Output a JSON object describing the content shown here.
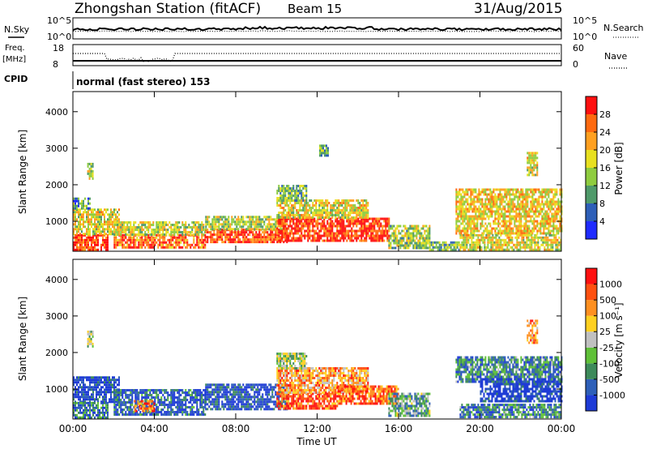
{
  "header": {
    "station": "Zhongshan Station (fitACF)",
    "beam": "Beam 15",
    "date": "31/Aug/2015"
  },
  "top_panels": {
    "nsky_label": "N.Sky",
    "nsky_ticks": [
      "10^5",
      "10^0"
    ],
    "nsearch_label": "N.Search",
    "nsearch_ticks": [
      "10^5",
      "10^0"
    ],
    "freq_label_1": "Freq.",
    "freq_label_2": "[MHz]",
    "freq_ticks": [
      "18",
      "8"
    ],
    "nave_label": "Nave",
    "nave_ticks": [
      "60",
      "0"
    ],
    "cpid_label": "CPID",
    "cpid_text": "normal (fast stereo) 153"
  },
  "chart_data": [
    {
      "type": "heatmap",
      "name": "power-panel",
      "ylabel": "Slant Range [km]",
      "xlabel": "",
      "x_ticks": [
        "00:00",
        "04:00",
        "08:00",
        "12:00",
        "16:00",
        "20:00",
        "00:00"
      ],
      "x_tick_hours": [
        0,
        4,
        8,
        12,
        16,
        20,
        24
      ],
      "y_ticks": [
        1000,
        2000,
        3000,
        4000
      ],
      "ylim": [
        180,
        4550
      ],
      "xlim_hours": [
        0,
        24
      ],
      "colorbar": {
        "label": "Power [dB]",
        "ticks": [
          "4",
          "8",
          "12",
          "16",
          "20",
          "24",
          "28"
        ],
        "colors": [
          "#1f2bff",
          "#2e5fb8",
          "#4f9a6a",
          "#8fcc3f",
          "#e8e020",
          "#ffa020",
          "#ff6a10",
          "#ff1010"
        ]
      },
      "echo_regions": [
        {
          "t0": 0.0,
          "t1": 1.7,
          "r0": 250,
          "r1": 650,
          "level": 0.9
        },
        {
          "t0": 0.0,
          "t1": 2.3,
          "r0": 650,
          "r1": 1350,
          "level": 0.55
        },
        {
          "t0": 0.0,
          "t1": 0.8,
          "r0": 1350,
          "r1": 1650,
          "level": 0.3
        },
        {
          "t0": 2.0,
          "t1": 6.5,
          "r0": 300,
          "r1": 650,
          "level": 0.8
        },
        {
          "t0": 2.0,
          "t1": 6.5,
          "r0": 650,
          "r1": 1000,
          "level": 0.5
        },
        {
          "t0": 6.5,
          "t1": 10.5,
          "r0": 450,
          "r1": 800,
          "level": 0.85
        },
        {
          "t0": 6.5,
          "t1": 10.5,
          "r0": 800,
          "r1": 1150,
          "level": 0.5
        },
        {
          "t0": 10.0,
          "t1": 15.5,
          "r0": 450,
          "r1": 1100,
          "level": 0.9
        },
        {
          "t0": 10.0,
          "t1": 14.5,
          "r0": 1100,
          "r1": 1600,
          "level": 0.55
        },
        {
          "t0": 10.0,
          "t1": 11.5,
          "r0": 1600,
          "r1": 2000,
          "level": 0.4
        },
        {
          "t0": 15.5,
          "t1": 17.5,
          "r0": 300,
          "r1": 900,
          "level": 0.45
        },
        {
          "t0": 17.5,
          "t1": 19.0,
          "r0": 250,
          "r1": 450,
          "level": 0.4
        },
        {
          "t0": 18.8,
          "t1": 24.0,
          "r0": 700,
          "r1": 1900,
          "level": 0.6
        },
        {
          "t0": 19.0,
          "t1": 24.0,
          "r0": 250,
          "r1": 650,
          "level": 0.55
        },
        {
          "t0": 22.3,
          "t1": 22.8,
          "r0": 2300,
          "r1": 2900,
          "level": 0.55
        },
        {
          "t0": 0.7,
          "t1": 1.0,
          "r0": 2200,
          "r1": 2600,
          "level": 0.5
        },
        {
          "t0": 12.1,
          "t1": 12.5,
          "r0": 2800,
          "r1": 3100,
          "level": 0.35
        }
      ]
    },
    {
      "type": "heatmap",
      "name": "velocity-panel",
      "ylabel": "Slant Range [km]",
      "xlabel": "Time UT",
      "x_ticks": [
        "00:00",
        "04:00",
        "08:00",
        "12:00",
        "16:00",
        "20:00",
        "00:00"
      ],
      "x_tick_hours": [
        0,
        4,
        8,
        12,
        16,
        20,
        24
      ],
      "y_ticks": [
        1000,
        2000,
        3000,
        4000
      ],
      "ylim": [
        180,
        4550
      ],
      "xlim_hours": [
        0,
        24
      ],
      "colorbar": {
        "label": "Velocity [m s⁻¹]",
        "ticks": [
          "1000",
          "500",
          "100",
          "25",
          "-25",
          "-100",
          "-500",
          "-1000"
        ],
        "colors": [
          "#1e3bd6",
          "#2e5fb8",
          "#3d8a5a",
          "#5fc038",
          "#c0c0c0",
          "#ffd020",
          "#ff9020",
          "#ff5010",
          "#ff1010"
        ]
      },
      "echo_regions": [
        {
          "t0": 0.0,
          "t1": 2.3,
          "r0": 650,
          "r1": 1350,
          "level": 0.05
        },
        {
          "t0": 0.0,
          "t1": 1.7,
          "r0": 250,
          "r1": 650,
          "level": 0.2
        },
        {
          "t0": 2.0,
          "t1": 6.5,
          "r0": 300,
          "r1": 1000,
          "level": 0.15
        },
        {
          "t0": 3.0,
          "t1": 4.0,
          "r0": 400,
          "r1": 700,
          "level": 0.8
        },
        {
          "t0": 6.5,
          "t1": 10.5,
          "r0": 450,
          "r1": 1150,
          "level": 0.1
        },
        {
          "t0": 10.0,
          "t1": 13.0,
          "r0": 450,
          "r1": 900,
          "level": 0.85
        },
        {
          "t0": 10.0,
          "t1": 14.5,
          "r0": 900,
          "r1": 1600,
          "level": 0.7
        },
        {
          "t0": 13.0,
          "t1": 16.0,
          "r0": 600,
          "r1": 1100,
          "level": 0.8
        },
        {
          "t0": 10.0,
          "t1": 11.5,
          "r0": 1600,
          "r1": 2000,
          "level": 0.45
        },
        {
          "t0": 15.5,
          "t1": 17.5,
          "r0": 300,
          "r1": 900,
          "level": 0.35
        },
        {
          "t0": 18.8,
          "t1": 24.0,
          "r0": 1200,
          "r1": 1900,
          "level": 0.25
        },
        {
          "t0": 20.0,
          "t1": 24.0,
          "r0": 700,
          "r1": 1300,
          "level": 0.05
        },
        {
          "t0": 19.0,
          "t1": 24.0,
          "r0": 250,
          "r1": 600,
          "level": 0.25
        },
        {
          "t0": 22.3,
          "t1": 22.8,
          "r0": 2300,
          "r1": 2900,
          "level": 0.75
        },
        {
          "t0": 0.7,
          "t1": 1.0,
          "r0": 2200,
          "r1": 2600,
          "level": 0.45
        }
      ]
    }
  ]
}
